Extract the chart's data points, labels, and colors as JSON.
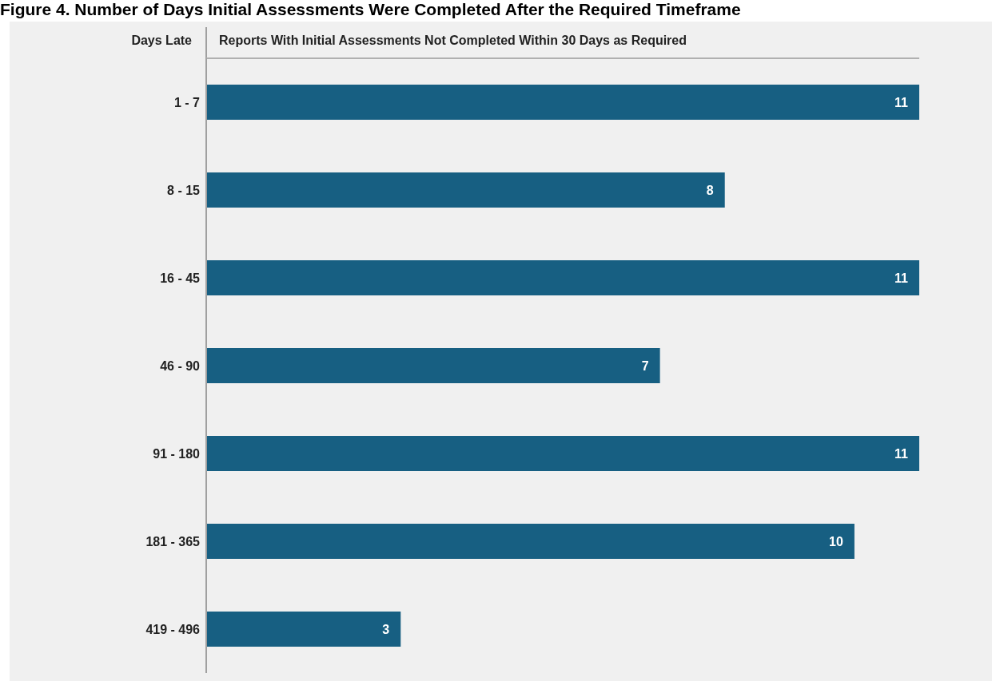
{
  "chart_data": {
    "type": "bar",
    "orientation": "horizontal",
    "title": "Figure 4. Number of Days Initial Assessments Were Completed After the Required Timeframe",
    "ylabel": "Days Late",
    "xlabel": "Reports With Initial Assessments Not Completed Within 30 Days as Required",
    "categories": [
      "1 - 7",
      "8 - 15",
      "16 - 45",
      "46 - 90",
      "91 - 180",
      "181 - 365",
      "419 - 496"
    ],
    "values": [
      11,
      8,
      11,
      7,
      11,
      10,
      3
    ],
    "color": "#175f82",
    "data_labels": true,
    "grid": false,
    "legend": false
  }
}
